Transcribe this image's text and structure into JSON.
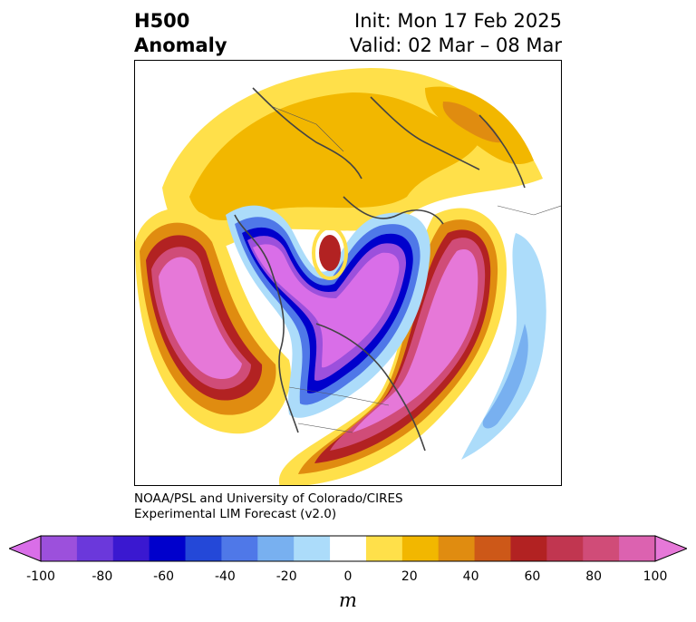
{
  "title": {
    "left_line1": "H500",
    "left_line2": "Anomaly",
    "right_line1": "Init: Mon 17 Feb 2025",
    "right_line2": "Valid: 02 Mar – 08 Mar"
  },
  "credit": {
    "line1": "NOAA/PSL and University of Colorado/CIRES",
    "line2": "Experimental LIM Forecast (v2.0)"
  },
  "colorbar": {
    "unit": "m",
    "ticks": [
      "-100",
      "-80",
      "-60",
      "-40",
      "-20",
      "0",
      "20",
      "40",
      "60",
      "80",
      "100"
    ],
    "colors": [
      "#d96ee8",
      "#9c50dc",
      "#6b38db",
      "#3a18d0",
      "#0000cc",
      "#2448d8",
      "#4f78e8",
      "#78b0f0",
      "#acdcfa",
      "#ffffff",
      "#ffe04a",
      "#f2b700",
      "#e08c10",
      "#cd5818",
      "#b22222",
      "#c13650",
      "#d04c78",
      "#dc62b0",
      "#e678d8"
    ]
  },
  "map": {
    "projection": "north-polar-stereographic",
    "colors": {
      "ocean_bg": "#ffffff",
      "coast": "#444444"
    }
  }
}
